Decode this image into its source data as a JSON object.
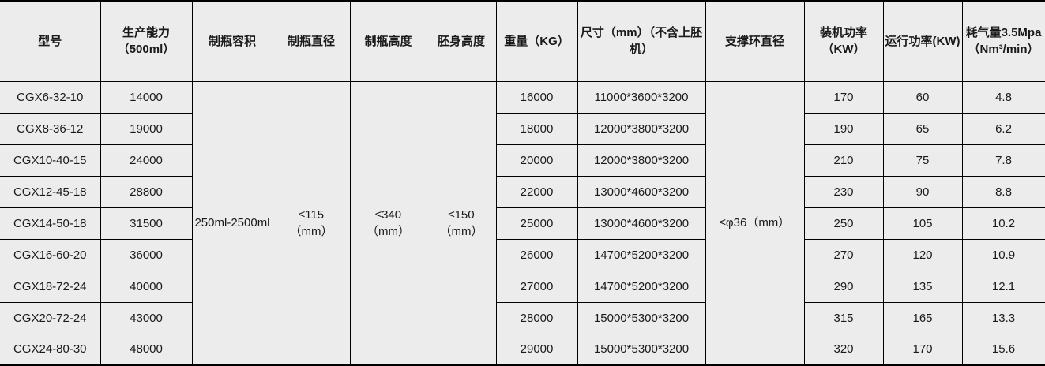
{
  "colors": {
    "table_background": "#ececec",
    "grid_border": "#000000",
    "text": "#1a1a1a"
  },
  "table": {
    "columns": [
      {
        "id": "model",
        "label": "型号",
        "merged": false
      },
      {
        "id": "capacity",
        "label": "生产能力\n（500ml）",
        "merged": false
      },
      {
        "id": "bottle_volume",
        "label": "制瓶容积",
        "merged": true,
        "merged_value": "250ml-2500ml"
      },
      {
        "id": "bottle_diameter",
        "label": "制瓶直径",
        "merged": true,
        "merged_value": "≤115\n（mm）"
      },
      {
        "id": "bottle_height",
        "label": "制瓶高度",
        "merged": true,
        "merged_value": "≤340\n（mm）"
      },
      {
        "id": "preform_body_height",
        "label": "胚身高度",
        "merged": true,
        "merged_value": "≤150\n（mm）"
      },
      {
        "id": "weight",
        "label": "重量（KG）",
        "merged": false
      },
      {
        "id": "size",
        "label": "尺寸（mm）（不含上胚机）",
        "merged": false
      },
      {
        "id": "support_ring_diameter",
        "label": "支撑环直径",
        "merged": true,
        "merged_value": "≤φ36（mm）"
      },
      {
        "id": "installed_power",
        "label": "装机功率\n（KW）",
        "merged": false
      },
      {
        "id": "running_power",
        "label": "运行功率(KW)",
        "merged": false
      },
      {
        "id": "air_consumption",
        "label": "耗气量3.5Mpa\n（Nm³/min）",
        "merged": false
      }
    ],
    "rows": [
      {
        "model": "CGX6-32-10",
        "capacity": "14000",
        "weight": "16000",
        "size": "11000*3600*3200",
        "installed_power": "170",
        "running_power": "60",
        "air_consumption": "4.8"
      },
      {
        "model": "CGX8-36-12",
        "capacity": "19000",
        "weight": "18000",
        "size": "12000*3800*3200",
        "installed_power": "190",
        "running_power": "65",
        "air_consumption": "6.2"
      },
      {
        "model": "CGX10-40-15",
        "capacity": "24000",
        "weight": "20000",
        "size": "12000*3800*3200",
        "installed_power": "210",
        "running_power": "75",
        "air_consumption": "7.8"
      },
      {
        "model": "CGX12-45-18",
        "capacity": "28800",
        "weight": "22000",
        "size": "13000*4600*3200",
        "installed_power": "230",
        "running_power": "90",
        "air_consumption": "8.8"
      },
      {
        "model": "CGX14-50-18",
        "capacity": "31500",
        "weight": "25000",
        "size": "13000*4600*3200",
        "installed_power": "250",
        "running_power": "105",
        "air_consumption": "10.2"
      },
      {
        "model": "CGX16-60-20",
        "capacity": "36000",
        "weight": "26000",
        "size": "14700*5200*3200",
        "installed_power": "270",
        "running_power": "120",
        "air_consumption": "10.9"
      },
      {
        "model": "CGX18-72-24",
        "capacity": "40000",
        "weight": "27000",
        "size": "14700*5200*3200",
        "installed_power": "290",
        "running_power": "135",
        "air_consumption": "12.1"
      },
      {
        "model": "CGX20-72-24",
        "capacity": "43000",
        "weight": "28000",
        "size": "15000*5300*3200",
        "installed_power": "315",
        "running_power": "165",
        "air_consumption": "13.3"
      },
      {
        "model": "CGX24-80-30",
        "capacity": "48000",
        "weight": "29000",
        "size": "15000*5300*3200",
        "installed_power": "320",
        "running_power": "170",
        "air_consumption": "15.6"
      }
    ]
  }
}
